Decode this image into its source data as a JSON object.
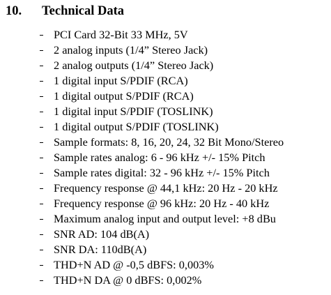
{
  "section": {
    "number": "10.",
    "title": "Technical Data"
  },
  "items": [
    "PCI Card 32-Bit 33 MHz, 5V",
    "2 analog inputs (1/4” Stereo Jack)",
    "2 analog outputs (1/4” Stereo Jack)",
    "1 digital input S/PDIF (RCA)",
    "1 digital output S/PDIF (RCA)",
    "1 digital input S/PDIF (TOSLINK)",
    "1 digital output S/PDIF (TOSLINK)",
    "Sample formats: 8, 16, 20, 24, 32 Bit Mono/Stereo",
    "Sample rates analog: 6 - 96 kHz +/- 15% Pitch",
    "Sample rates digital: 32 - 96 kHz +/- 15% Pitch",
    "Frequency response @ 44,1 kHz: 20 Hz - 20 kHz",
    "Frequency response @ 96 kHz: 20 Hz - 40 kHz",
    "Maximum analog input and output level: +8 dBu",
    "SNR AD: 104 dB(A)",
    "SNR DA: 110dB(A)",
    "THD+N AD @ -0,5 dBFS: 0,003%",
    "THD+N DA @ 0 dBFS: 0,002%"
  ]
}
